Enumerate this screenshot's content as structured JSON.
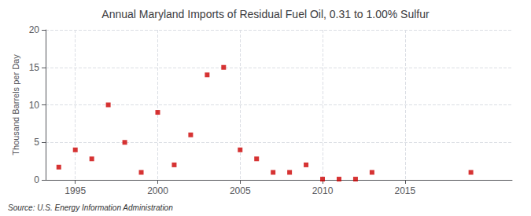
{
  "chart_data": {
    "type": "scatter",
    "title": "Annual Maryland Imports of Residual Fuel Oil, 0.31 to 1.00% Sulfur",
    "y_label": "Thousand Barrels per Day",
    "source": "Source: U.S. Energy Information Administration",
    "x": [
      1994,
      1995,
      1996,
      1997,
      1998,
      1999,
      2000,
      2001,
      2002,
      2003,
      2004,
      2005,
      2006,
      2007,
      2008,
      2009,
      2010,
      2011,
      2012,
      2013,
      2019
    ],
    "values": [
      1.7,
      4.0,
      2.8,
      10.0,
      5.0,
      1.0,
      9.0,
      2.0,
      6.0,
      14.0,
      15.0,
      4.0,
      2.8,
      1.0,
      1.0,
      2.0,
      0.1,
      0.1,
      0.1,
      1.0,
      1.0
    ],
    "color": "#cc0000",
    "marker": "square",
    "xlim": [
      1993.2,
      2021.5
    ],
    "xticks": [
      1995,
      2000,
      2005,
      2010,
      2015
    ],
    "ylim": [
      0,
      20
    ],
    "yticks": [
      0,
      5,
      10,
      15,
      20
    ],
    "grid": true
  }
}
